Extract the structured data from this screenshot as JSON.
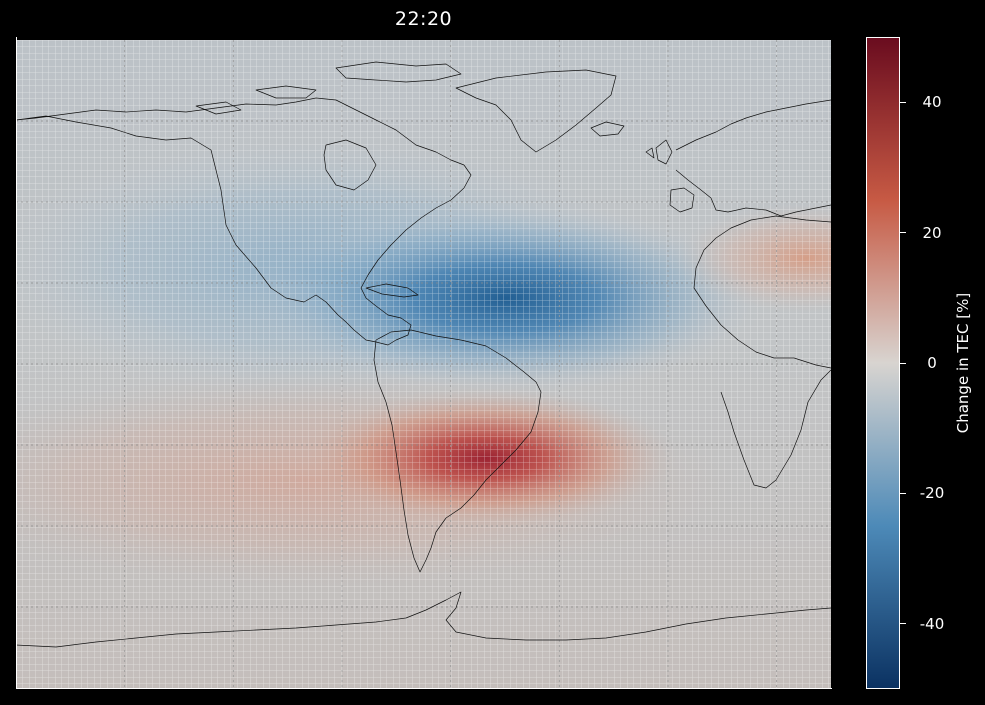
{
  "map": {
    "title": "22:20",
    "field": "Change in TEC [%]",
    "projection": "equirectangular",
    "extent": {
      "lon": [
        -135,
        15
      ],
      "lat": [
        -80,
        80
      ]
    },
    "meridians_deg": [
      -115,
      -95,
      -75,
      -55,
      -35,
      -15,
      5
    ],
    "parallels_deg": [
      60,
      40,
      20,
      0,
      -20,
      -40,
      -60
    ],
    "anomalies": [
      {
        "kind": "depletion",
        "center_lon": -54,
        "center_lat": 17,
        "peak_percent": -42
      },
      {
        "kind": "depletion",
        "center_lon": -90,
        "center_lat": 28,
        "peak_percent": -20
      },
      {
        "kind": "enhancement",
        "center_lon": -54,
        "center_lat": -24,
        "peak_percent": 44
      },
      {
        "kind": "enhancement",
        "center_lon": 8,
        "center_lat": 22,
        "peak_percent": 18
      }
    ]
  },
  "colorbar": {
    "label": "Change in TEC [%]",
    "range": [
      -50,
      50
    ],
    "ticks": [
      {
        "value": 40,
        "label": "40"
      },
      {
        "value": 20,
        "label": "20"
      },
      {
        "value": 0,
        "label": "0"
      },
      {
        "value": -20,
        "label": "-20"
      },
      {
        "value": -40,
        "label": "-40"
      }
    ],
    "colormap": "RdBu_r",
    "colors": {
      "min": "#0b3262",
      "low": "#4d8ab8",
      "mid": "#d8d4d0",
      "high": "#c75a44",
      "max": "#6a0c1f"
    }
  },
  "style": {
    "background": "#000000",
    "foreground": "#ffffff",
    "neutral_fill": "#bdbdbd",
    "coastline": "#111111",
    "grid_cell_line": "#ffffff"
  }
}
